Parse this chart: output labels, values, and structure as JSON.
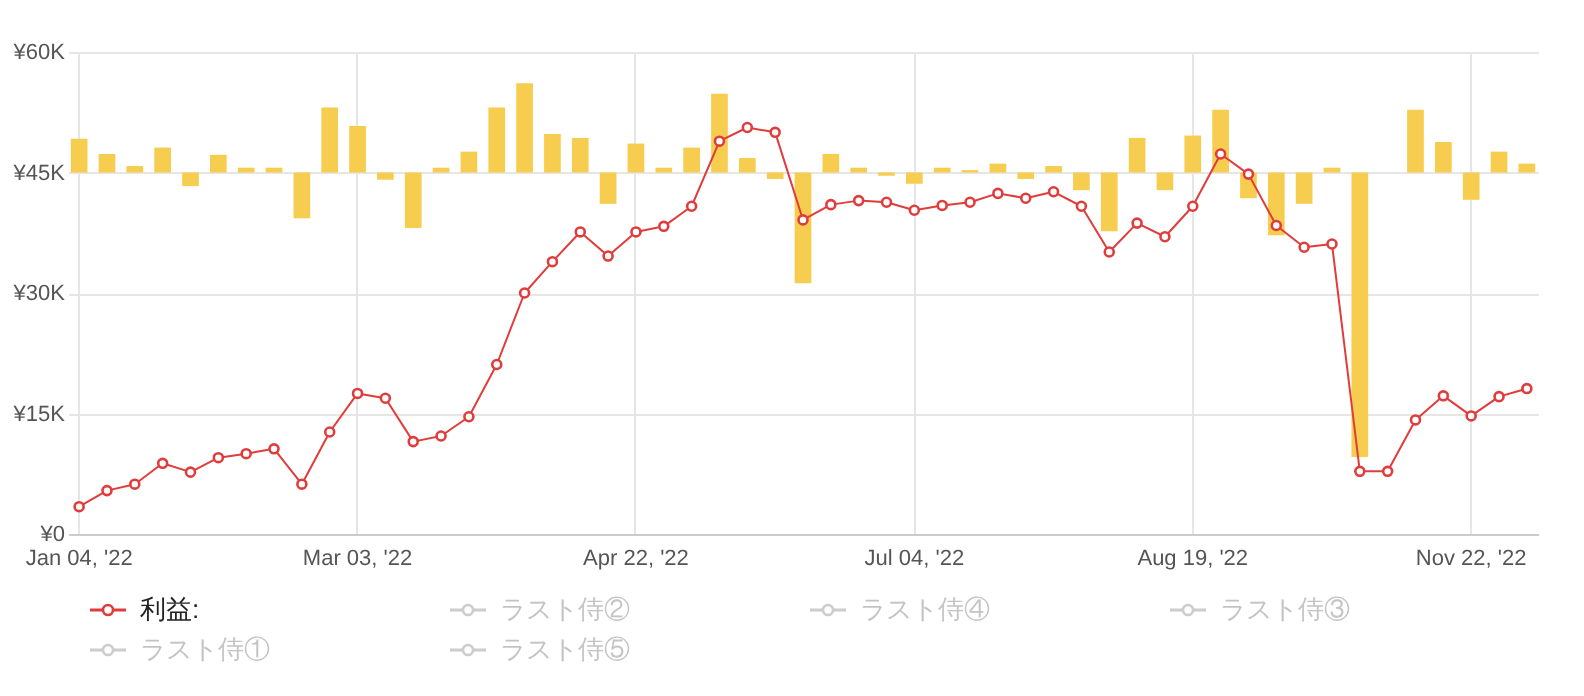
{
  "chart_data": {
    "type": "line",
    "categories": [
      "Jan 04, '22",
      null,
      null,
      null,
      null,
      null,
      null,
      null,
      null,
      null,
      "Mar 03, '22",
      null,
      null,
      null,
      null,
      null,
      null,
      null,
      null,
      null,
      "Apr 22, '22",
      null,
      null,
      null,
      null,
      null,
      null,
      null,
      null,
      null,
      "Jul 04, '22",
      null,
      null,
      null,
      null,
      null,
      null,
      null,
      null,
      null,
      "Aug 19, '22",
      null,
      null,
      null,
      null,
      null,
      null,
      null,
      null,
      null,
      "Nov 22, '22",
      null,
      null
    ],
    "series": [
      {
        "type": "bar",
        "color": "#f7cd4f",
        "base": [
          45000,
          45000,
          45000,
          45000,
          45000,
          45000,
          45000,
          45000,
          45000,
          45000,
          45000,
          45000,
          45000,
          45000,
          45000,
          45000,
          45000,
          45000,
          45000,
          45000,
          45000,
          45000,
          45000,
          45000,
          45000,
          45000,
          45000,
          45000,
          45000,
          45000,
          45000,
          45000,
          45000,
          45000,
          45000,
          45000,
          45000,
          45000,
          45000,
          45000,
          45000,
          45000,
          45000,
          45000,
          45000,
          45000,
          45000,
          null,
          45000,
          45000,
          45000,
          45000,
          45000
        ],
        "values": [
          4200,
          2300,
          800,
          3100,
          -1700,
          2200,
          600,
          600,
          -5700,
          8100,
          5800,
          -900,
          -6900,
          600,
          2600,
          8100,
          11100,
          4800,
          4300,
          -3900,
          3600,
          600,
          3100,
          9800,
          1800,
          -800,
          -13800,
          2300,
          600,
          -400,
          -1400,
          600,
          300,
          1100,
          -800,
          800,
          -2200,
          -7300,
          4300,
          -2200,
          4600,
          7800,
          -3200,
          -7800,
          -3900,
          600,
          -35400,
          null,
          7800,
          3800,
          -3400,
          2600,
          1100
        ]
      },
      {
        "name": "利益:",
        "color": "#e03c3c",
        "values": [
          3400,
          5400,
          6200,
          8800,
          7700,
          9500,
          10000,
          10600,
          6200,
          12700,
          17500,
          16900,
          11500,
          12200,
          14600,
          21100,
          30000,
          33900,
          37600,
          34600,
          37600,
          38300,
          40800,
          48900,
          50600,
          50000,
          39100,
          41000,
          41500,
          41300,
          40300,
          40900,
          41300,
          42400,
          41800,
          42600,
          40800,
          35100,
          38700,
          37000,
          40800,
          47300,
          44800,
          38400,
          35700,
          36100,
          7800,
          7800,
          14200,
          17200,
          14700,
          17100,
          18100
        ]
      },
      {
        "name": "ラスト侍②",
        "color": "#cccccc",
        "values": [
          null,
          null,
          null,
          null,
          null,
          null,
          null,
          null,
          null,
          null,
          null,
          null,
          null,
          null,
          null,
          null,
          null,
          null,
          null,
          null,
          null,
          null,
          null,
          null,
          null,
          null,
          null,
          null,
          null,
          null,
          null,
          null,
          null,
          null,
          null,
          null,
          null,
          null,
          null,
          null,
          null,
          null,
          null,
          null,
          null,
          null,
          null,
          null,
          null,
          null,
          null,
          null,
          null
        ]
      },
      {
        "name": "ラスト侍④",
        "color": "#cccccc",
        "values": [
          null,
          null,
          null,
          null,
          null,
          null,
          null,
          null,
          null,
          null,
          null,
          null,
          null,
          null,
          null,
          null,
          null,
          null,
          null,
          null,
          null,
          null,
          null,
          null,
          null,
          null,
          null,
          null,
          null,
          null,
          null,
          null,
          null,
          null,
          null,
          null,
          null,
          null,
          null,
          null,
          null,
          null,
          null,
          null,
          null,
          null,
          null,
          null,
          null,
          null,
          null,
          null,
          null
        ]
      },
      {
        "name": "ラスト侍③",
        "color": "#cccccc",
        "values": [
          null,
          null,
          null,
          null,
          null,
          null,
          null,
          null,
          null,
          null,
          null,
          null,
          null,
          null,
          null,
          null,
          null,
          null,
          null,
          null,
          null,
          null,
          null,
          null,
          null,
          null,
          null,
          null,
          null,
          null,
          null,
          null,
          null,
          null,
          null,
          null,
          null,
          null,
          null,
          null,
          null,
          null,
          null,
          null,
          null,
          null,
          null,
          null,
          null,
          null,
          null,
          null,
          null
        ]
      },
      {
        "name": "ラスト侍①",
        "color": "#cccccc",
        "values": [
          null,
          null,
          null,
          null,
          null,
          null,
          null,
          null,
          null,
          null,
          null,
          null,
          null,
          null,
          null,
          null,
          null,
          null,
          null,
          null,
          null,
          null,
          null,
          null,
          null,
          null,
          null,
          null,
          null,
          null,
          null,
          null,
          null,
          null,
          null,
          null,
          null,
          null,
          null,
          null,
          null,
          null,
          null,
          null,
          null,
          null,
          null,
          null,
          null,
          null,
          null,
          null,
          null
        ]
      },
      {
        "name": "ラスト侍⑤",
        "color": "#cccccc",
        "values": [
          null,
          null,
          null,
          null,
          null,
          null,
          null,
          null,
          null,
          null,
          null,
          null,
          null,
          null,
          null,
          null,
          null,
          null,
          null,
          null,
          null,
          null,
          null,
          null,
          null,
          null,
          null,
          null,
          null,
          null,
          null,
          null,
          null,
          null,
          null,
          null,
          null,
          null,
          null,
          null,
          null,
          null,
          null,
          null,
          null,
          null,
          null,
          null,
          null,
          null,
          null,
          null,
          null
        ]
      }
    ],
    "ylim": [
      0,
      60000
    ],
    "yticks": [
      {
        "value": 0,
        "label": "¥0"
      },
      {
        "value": 15000,
        "label": "¥15K"
      },
      {
        "value": 30000,
        "label": "¥30K"
      },
      {
        "value": 45000,
        "label": "¥45K"
      },
      {
        "value": 60000,
        "label": "¥60K"
      }
    ],
    "grid": true,
    "legend": "bottom",
    "marker": "circle",
    "line_style": "solid"
  }
}
